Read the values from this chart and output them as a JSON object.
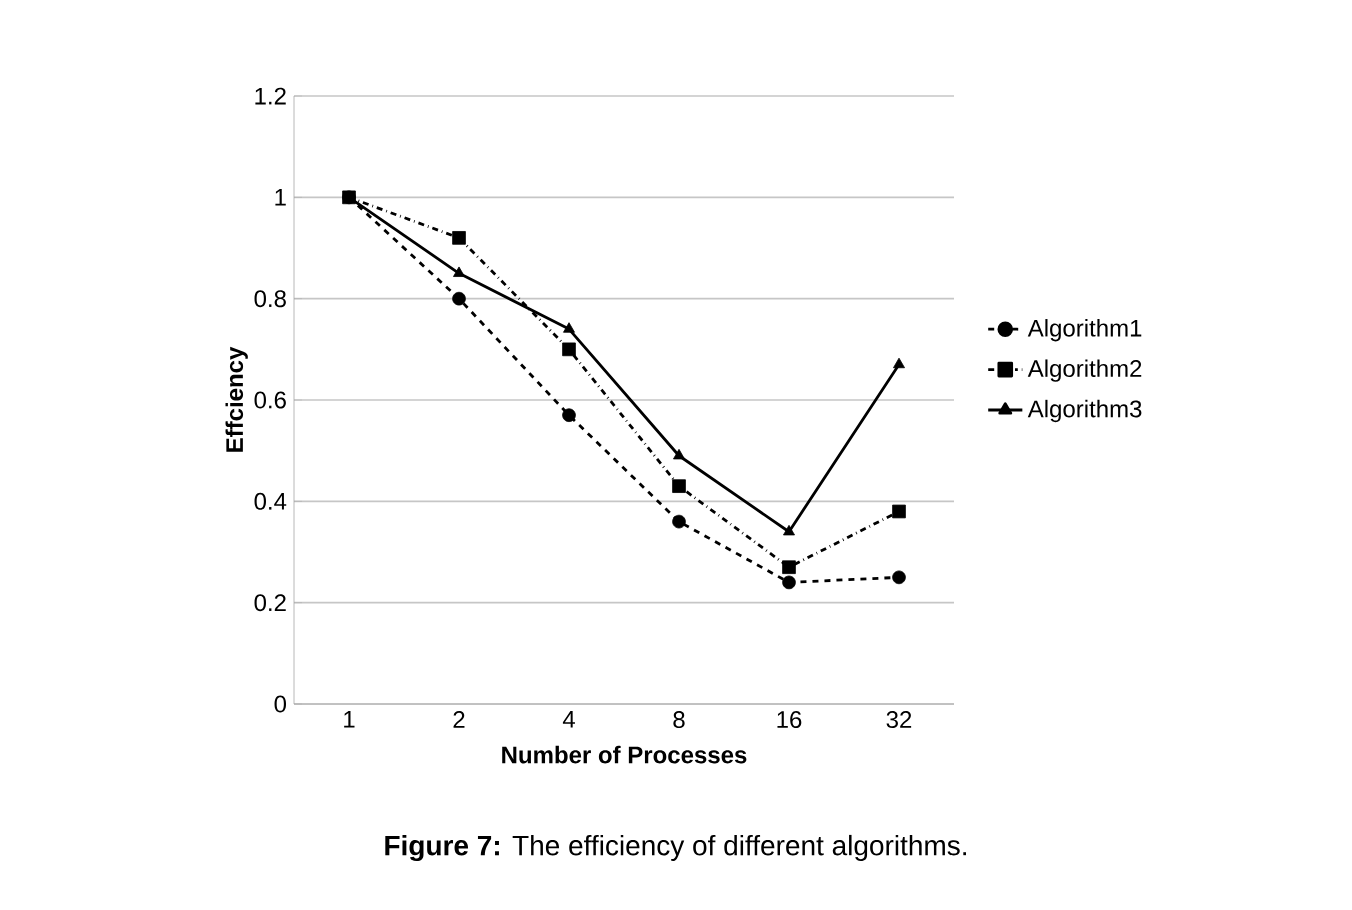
{
  "chart_data": {
    "type": "line",
    "xlabel": "Number of Processes",
    "ylabel": "Effciency",
    "annotations": [
      "**Figure 7:** The efficiency of different algorithms."
    ],
    "categories": [
      "1",
      "2",
      "4",
      "8",
      "16",
      "32"
    ],
    "series": [
      {
        "name": "Algorithm1",
        "color": "#000000",
        "marker": "circle",
        "line_style": "dashed",
        "values": [
          1,
          0.8,
          0.57,
          0.36,
          0.24,
          0.25
        ]
      },
      {
        "name": "Algorithm2",
        "color": "#000000",
        "marker": "square",
        "line_style": "dashdot",
        "values": [
          1,
          0.92,
          0.7,
          0.43,
          0.27,
          0.38
        ]
      },
      {
        "name": "Algorithm3",
        "color": "#000000",
        "marker": "triangle",
        "line_style": "solid",
        "values": [
          1,
          0.85,
          0.74,
          0.49,
          0.34,
          0.67
        ]
      }
    ],
    "ylim": [
      0,
      1.2
    ],
    "yticks": [
      0,
      0.2,
      0.4,
      0.6,
      0.8,
      1,
      1.2
    ],
    "grid": "y",
    "legend": "right"
  }
}
